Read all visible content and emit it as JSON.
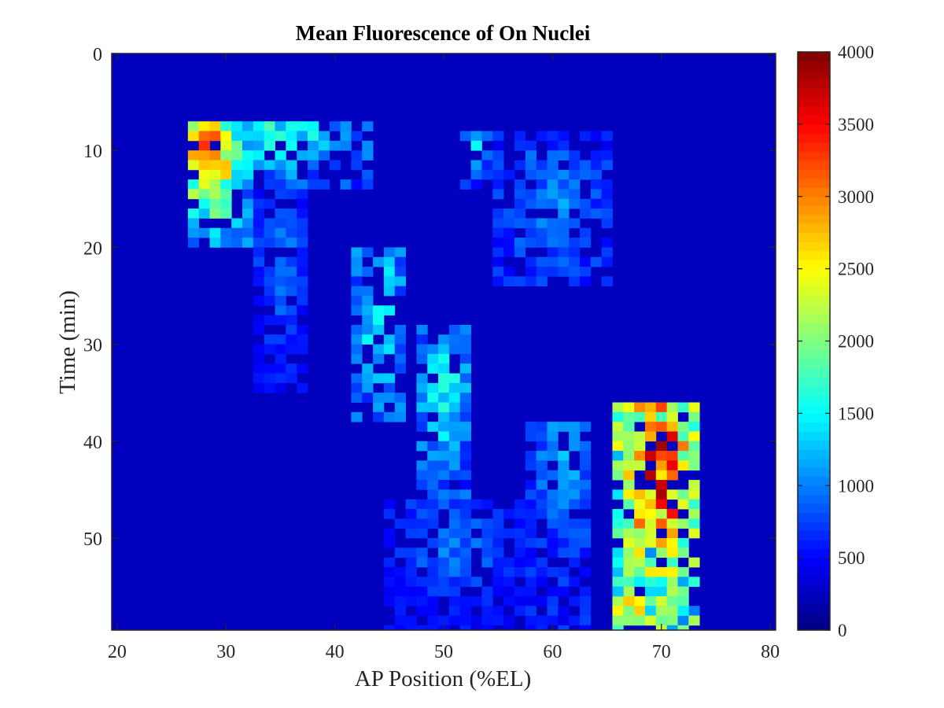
{
  "chart_data": {
    "type": "heatmap",
    "title": "Mean Fluorescence of On Nuclei",
    "xlabel": "AP Position (%EL)",
    "ylabel": "Time (min)",
    "xlim": [
      19.5,
      80.5
    ],
    "ylim": [
      0,
      59.5
    ],
    "y_direction": "reversed",
    "xticks": [
      20,
      30,
      40,
      50,
      60,
      70,
      80
    ],
    "yticks": [
      0,
      10,
      20,
      30,
      40,
      50
    ],
    "colormap": "jet",
    "clim": [
      0,
      4000
    ],
    "colorbar_ticks": [
      0,
      500,
      1000,
      1500,
      2000,
      2500,
      3000,
      3500,
      4000
    ],
    "grid": false,
    "background_value": 0,
    "cell_size": {
      "x": 1,
      "y": 1
    },
    "hotspots": [
      {
        "x_range": [
          27,
          32
        ],
        "y_range": [
          7,
          20
        ],
        "peak_x": 28.5,
        "peak_y": 9.5,
        "peak": 3900,
        "base": 1100
      },
      {
        "x_range": [
          32,
          43
        ],
        "y_range": [
          7,
          14
        ],
        "peak_x": 35,
        "peak_y": 8,
        "peak": 1800,
        "base": 700
      },
      {
        "x_range": [
          33,
          37
        ],
        "y_range": [
          14,
          35
        ],
        "peak_x": 35,
        "peak_y": 20,
        "peak": 900,
        "base": 350
      },
      {
        "x_range": [
          42,
          46
        ],
        "y_range": [
          20,
          38
        ],
        "peak_x": 44,
        "peak_y": 26,
        "peak": 1700,
        "base": 700
      },
      {
        "x_range": [
          48,
          52
        ],
        "y_range": [
          28,
          46
        ],
        "peak_x": 50,
        "peak_y": 34,
        "peak": 1700,
        "base": 650
      },
      {
        "x_range": [
          52,
          54
        ],
        "y_range": [
          8,
          14
        ],
        "peak_x": 53,
        "peak_y": 9,
        "peak": 1500,
        "base": 500
      },
      {
        "x_range": [
          55,
          65
        ],
        "y_range": [
          8,
          24
        ],
        "peak_x": 60,
        "peak_y": 15,
        "peak": 1000,
        "base": 450
      },
      {
        "x_range": [
          45,
          58
        ],
        "y_range": [
          46,
          60
        ],
        "peak_x": 51,
        "peak_y": 50,
        "peak": 900,
        "base": 300
      },
      {
        "x_range": [
          58,
          63
        ],
        "y_range": [
          38,
          60
        ],
        "peak_x": 61,
        "peak_y": 40,
        "peak": 1200,
        "base": 450
      },
      {
        "x_range": [
          66,
          73
        ],
        "y_range": [
          36,
          60
        ],
        "peak_x": 70,
        "peak_y": 43,
        "peak": 3950,
        "base": 1700
      },
      {
        "x_range": [
          66,
          72
        ],
        "y_range": [
          50,
          60
        ],
        "peak_x": 68,
        "peak_y": 57,
        "peak": 2900,
        "base": 1500
      }
    ]
  }
}
